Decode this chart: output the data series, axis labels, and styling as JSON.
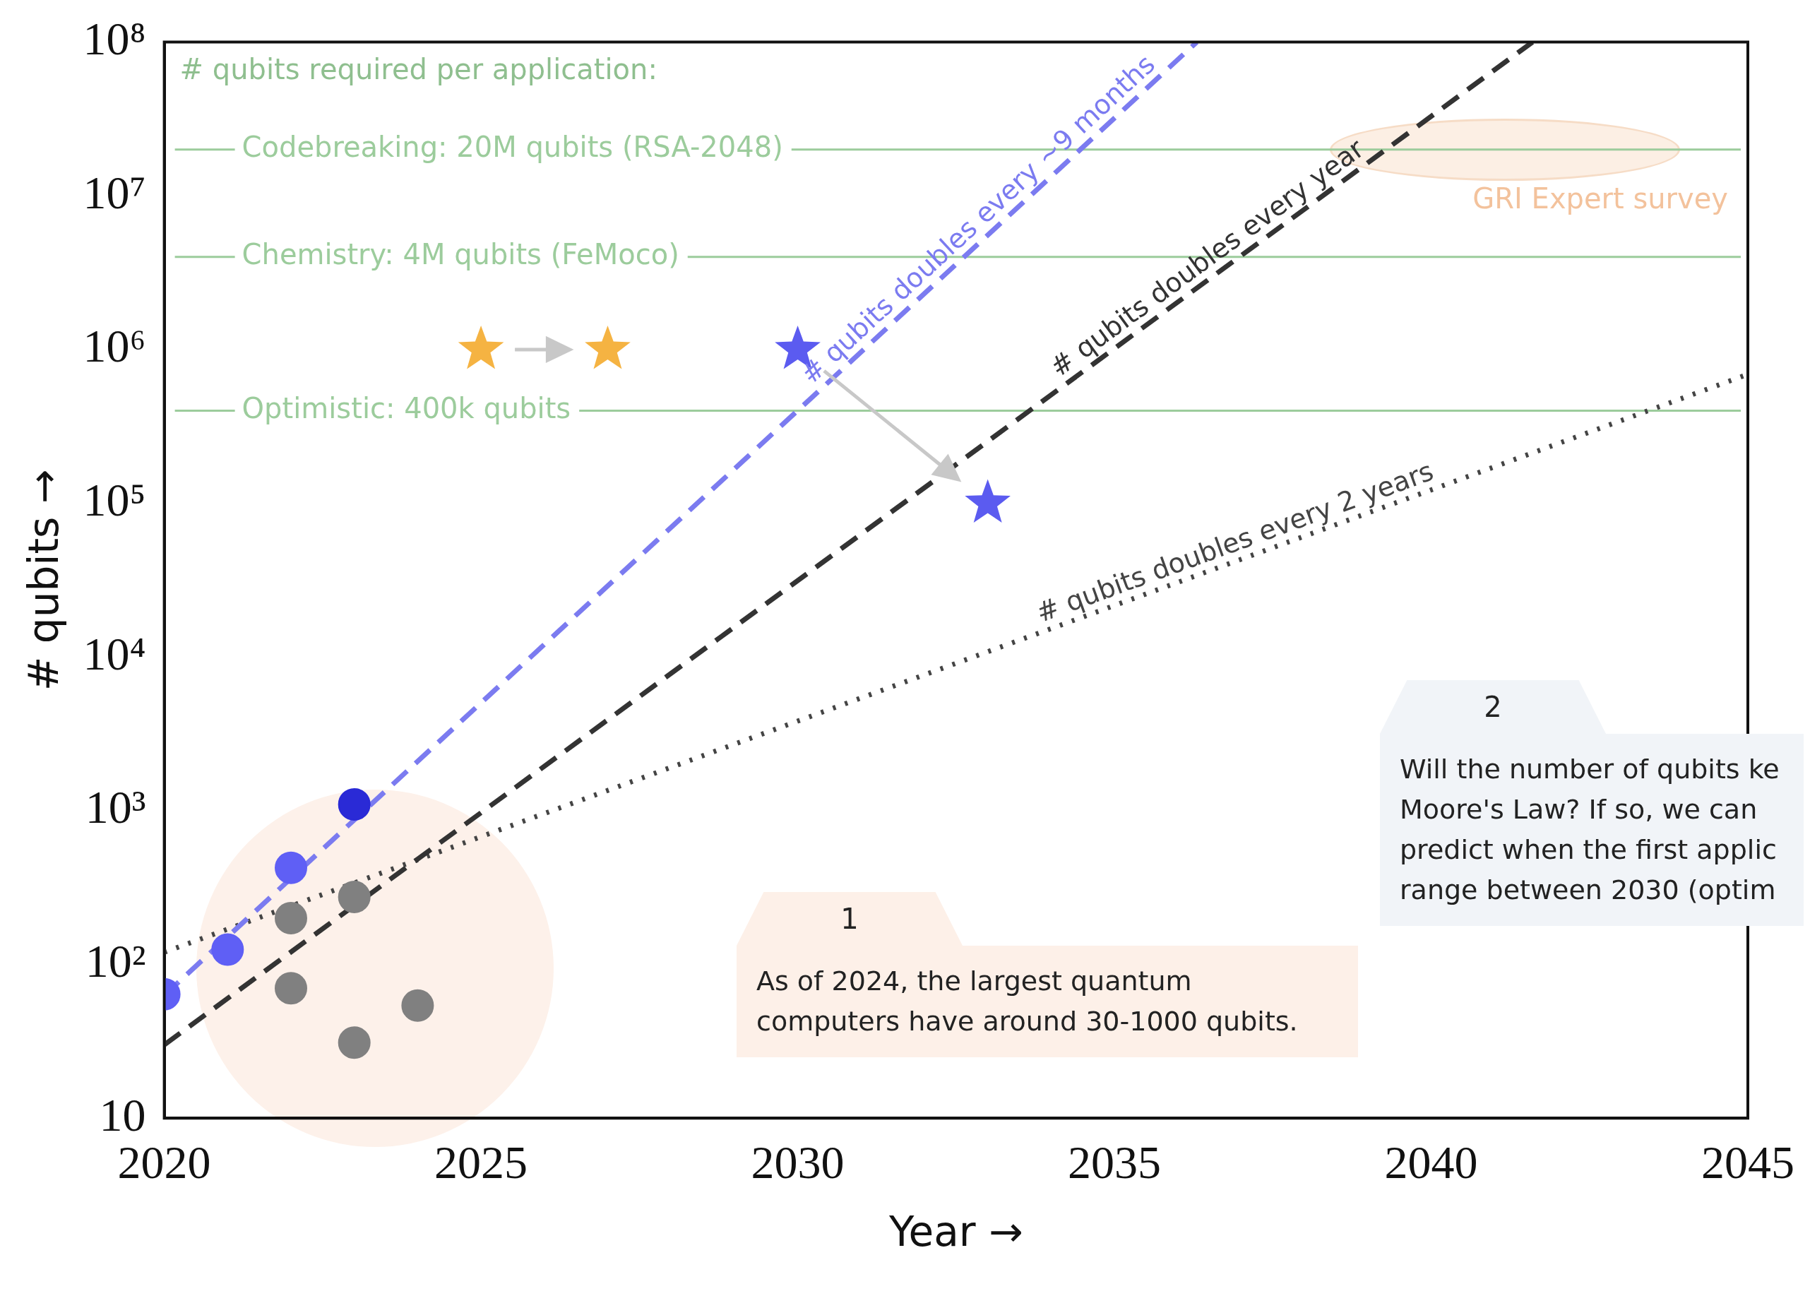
{
  "chart_data": {
    "type": "scatter",
    "xlabel": "Year →",
    "ylabel": "# qubits →",
    "xlim": [
      2020,
      2045
    ],
    "xticks": [
      2020,
      2025,
      2030,
      2035,
      2040,
      2045
    ],
    "ylim": [
      10,
      100000000
    ],
    "log": "y",
    "yticks": [
      10,
      {
        "value": 100,
        "label": "10²"
      },
      {
        "value": 1000,
        "label": "10³"
      },
      {
        "value": 10000,
        "label": "10⁴"
      },
      {
        "value": 100000,
        "label": "10⁵"
      },
      {
        "value": 1000000,
        "label": "10⁶"
      },
      {
        "value": 10000000,
        "label": "10⁷"
      },
      {
        "value": 100000000,
        "label": "10⁸"
      }
    ],
    "grid": false,
    "legend": false,
    "marker": "circle",
    "series": [
      {
        "type": "line",
        "name": "# qubits doubles every ~9 months",
        "color": "#7b7bf0",
        "line_style": "dashed",
        "marker": "none",
        "x": [
          2020,
          2036.3
        ],
        "values": [
          63,
          100000000
        ]
      },
      {
        "type": "line",
        "name": "# qubits doubles every year",
        "color": "#333333",
        "line_style": "dashed",
        "marker": "none",
        "x": [
          2020,
          2041.6
        ],
        "values": [
          30,
          100000000
        ]
      },
      {
        "type": "line",
        "name": "# qubits doubles every 2 years",
        "color": "#444444",
        "line_style": "dotted",
        "marker": "none",
        "x": [
          2020,
          2045
        ],
        "values": [
          120,
          690000
        ]
      },
      {
        "type": "scatter",
        "colors": [
          "#5f5ff5",
          "#5f5ff5",
          "#5f5ff5",
          "#2a2ad6"
        ],
        "x": [
          2020,
          2021,
          2022,
          2023
        ],
        "values": [
          64,
          125,
          425,
          1100
        ]
      },
      {
        "type": "scatter",
        "color": "#808080",
        "x": [
          2022,
          2022,
          2023,
          2023,
          2024
        ],
        "values": [
          200,
          70,
          275,
          31,
          54
        ]
      },
      {
        "type": "scatter",
        "color": "#f5b342",
        "marker": "star",
        "x": [
          2025,
          2027
        ],
        "values": [
          1000000,
          1000000
        ]
      },
      {
        "type": "scatter",
        "color": "#5b5bf0",
        "marker": "star",
        "x": [
          2030,
          2033
        ],
        "values": [
          1000000,
          100000
        ]
      }
    ],
    "ref_lines": [
      {
        "axis": "y",
        "value": 20000000,
        "label": "Codebreaking: 20M qubits (RSA-2048)",
        "color": "#9ccc9c"
      },
      {
        "axis": "y",
        "value": 4000000,
        "label": "Chemistry: 4M qubits (FeMoco)",
        "color": "#9ccc9c"
      },
      {
        "axis": "y",
        "value": 400000,
        "label": "Optimistic: 400k qubits",
        "color": "#9ccc9c"
      }
    ],
    "annotations": [
      "# qubits required per application:",
      "GRI Expert survey",
      "1",
      "As of 2024, the largest quantum computers have around 30-1000 qubits.",
      "2",
      "Will the number of qubits ke\nMoore's Law? If so, we can\npredict when the first applic\nrange between 2030 (optim"
    ]
  }
}
